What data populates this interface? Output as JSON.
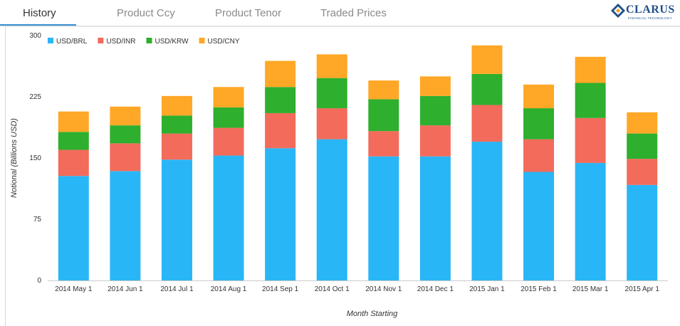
{
  "tabs": [
    {
      "label": "History",
      "active": true
    },
    {
      "label": "Product Ccy",
      "active": false
    },
    {
      "label": "Product Tenor",
      "active": false
    },
    {
      "label": "Traded Prices",
      "active": false
    }
  ],
  "logo": {
    "name": "CLARUS",
    "subtitle": "FINANCIAL TECHNOLOGY",
    "colors": [
      "#1f4e8c",
      "#f39c12"
    ]
  },
  "accent_color": "#3a8fd1",
  "chart_data": {
    "type": "bar",
    "stacked": true,
    "title": "",
    "xlabel": "Month Starting",
    "ylabel": "Notional (Billions USD)",
    "ylim": [
      0,
      300
    ],
    "yticks": [
      0,
      75,
      150,
      225,
      300
    ],
    "grid": false,
    "legend_position": "top-left",
    "categories": [
      "2014 May 1",
      "2014 Jun 1",
      "2014 Jul 1",
      "2014 Aug 1",
      "2014 Sep 1",
      "2014 Oct 1",
      "2014 Nov 1",
      "2014 Dec 1",
      "2015 Jan 1",
      "2015 Feb 1",
      "2015 Mar 1",
      "2015 Apr 1"
    ],
    "series": [
      {
        "name": "USD/BRL",
        "color": "#29b6f6",
        "values": [
          128,
          134,
          148,
          153,
          162,
          173,
          152,
          152,
          170,
          133,
          144,
          117
        ]
      },
      {
        "name": "USD/INR",
        "color": "#f26b5b",
        "values": [
          32,
          34,
          32,
          34,
          43,
          38,
          31,
          38,
          45,
          40,
          55,
          32
        ]
      },
      {
        "name": "USD/KRW",
        "color": "#2eaf2e",
        "values": [
          22,
          22,
          22,
          25,
          32,
          37,
          39,
          36,
          38,
          38,
          43,
          31
        ]
      },
      {
        "name": "USD/CNY",
        "color": "#ffa726",
        "values": [
          25,
          23,
          24,
          25,
          32,
          29,
          23,
          24,
          35,
          29,
          32,
          26
        ]
      }
    ]
  }
}
